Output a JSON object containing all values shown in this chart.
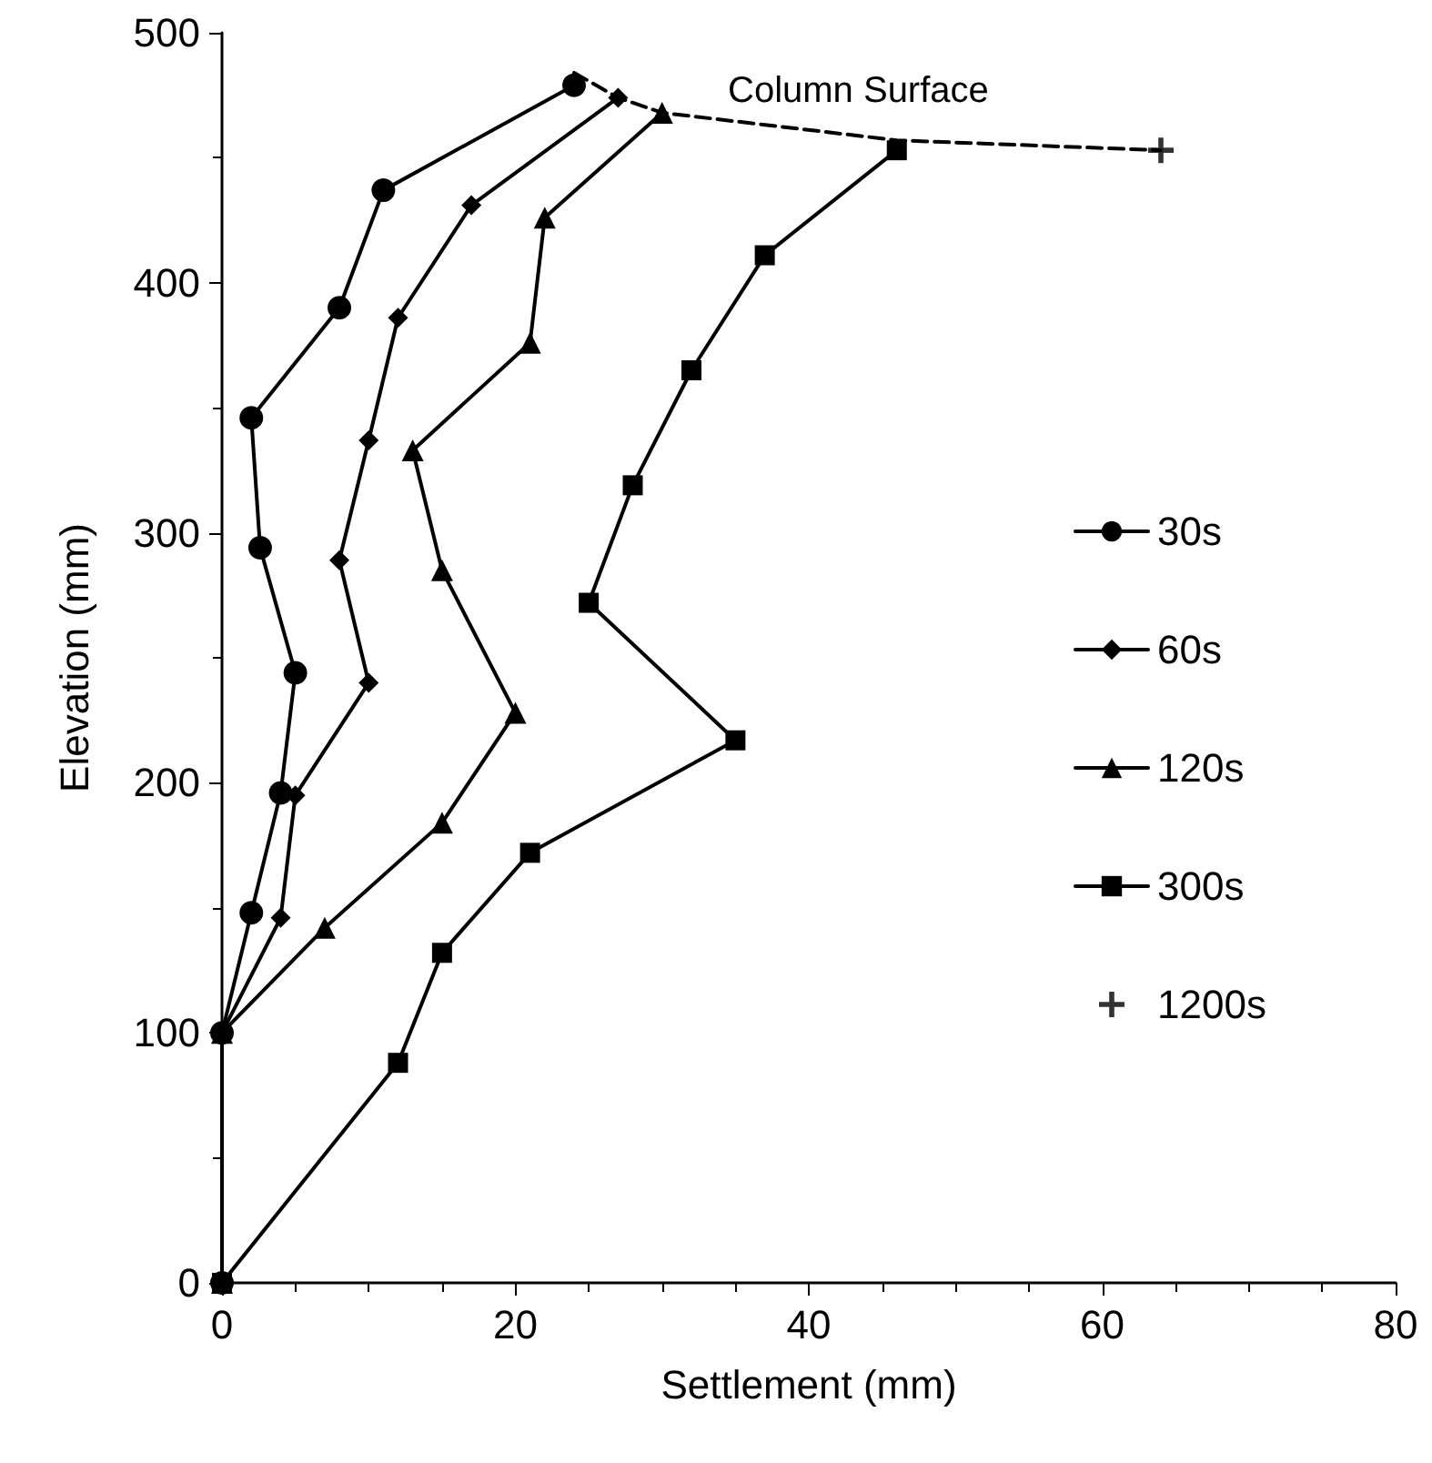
{
  "chart_data": {
    "type": "line",
    "xlabel": "Settlement (mm)",
    "ylabel": "Elevation (mm)",
    "xlim": [
      0,
      80
    ],
    "xticks": [
      0,
      20,
      40,
      60,
      80
    ],
    "ylim": [
      0,
      500
    ],
    "yticks": [
      0,
      100,
      200,
      300,
      400,
      500
    ],
    "grid": false,
    "legend": "right",
    "line_style": "solid",
    "series": [
      {
        "name": "30s",
        "color": "#000000",
        "marker": "circle",
        "x": [
          24,
          11,
          8,
          2,
          2.6,
          5,
          4,
          2,
          0,
          0
        ],
        "values": [
          479,
          437,
          390,
          346,
          294,
          244,
          196,
          148,
          100,
          0
        ]
      },
      {
        "name": "60s",
        "color": "#000000",
        "marker": "diamond",
        "x": [
          27,
          17,
          12,
          10,
          8,
          10,
          5,
          4,
          0,
          0
        ],
        "values": [
          474,
          431,
          386,
          337,
          289,
          240,
          195,
          146,
          100,
          0
        ]
      },
      {
        "name": "120s",
        "color": "#000000",
        "marker": "triangle",
        "x": [
          30,
          22,
          21,
          13,
          15,
          20,
          15,
          7,
          0,
          0
        ],
        "values": [
          468,
          426,
          376,
          333,
          285,
          228,
          184,
          142,
          100,
          0
        ]
      },
      {
        "name": "300s",
        "color": "#000000",
        "marker": "square",
        "x": [
          46,
          37,
          32,
          28,
          25,
          35,
          21,
          15,
          12,
          0
        ],
        "values": [
          453,
          411,
          365,
          319,
          272,
          217,
          172,
          132,
          88,
          0
        ]
      },
      {
        "name": "1200s",
        "type": "scatter",
        "color": "#000000",
        "marker": "cross",
        "x": [
          64
        ],
        "values": [
          453
        ]
      },
      {
        "type": "line",
        "color": "#000000",
        "marker": "none",
        "line_style": "dashed",
        "x": [
          24,
          27,
          30,
          46,
          64
        ],
        "values": [
          484,
          474,
          468,
          457,
          453
        ]
      }
    ],
    "annotations": [
      "Column Surface"
    ]
  }
}
